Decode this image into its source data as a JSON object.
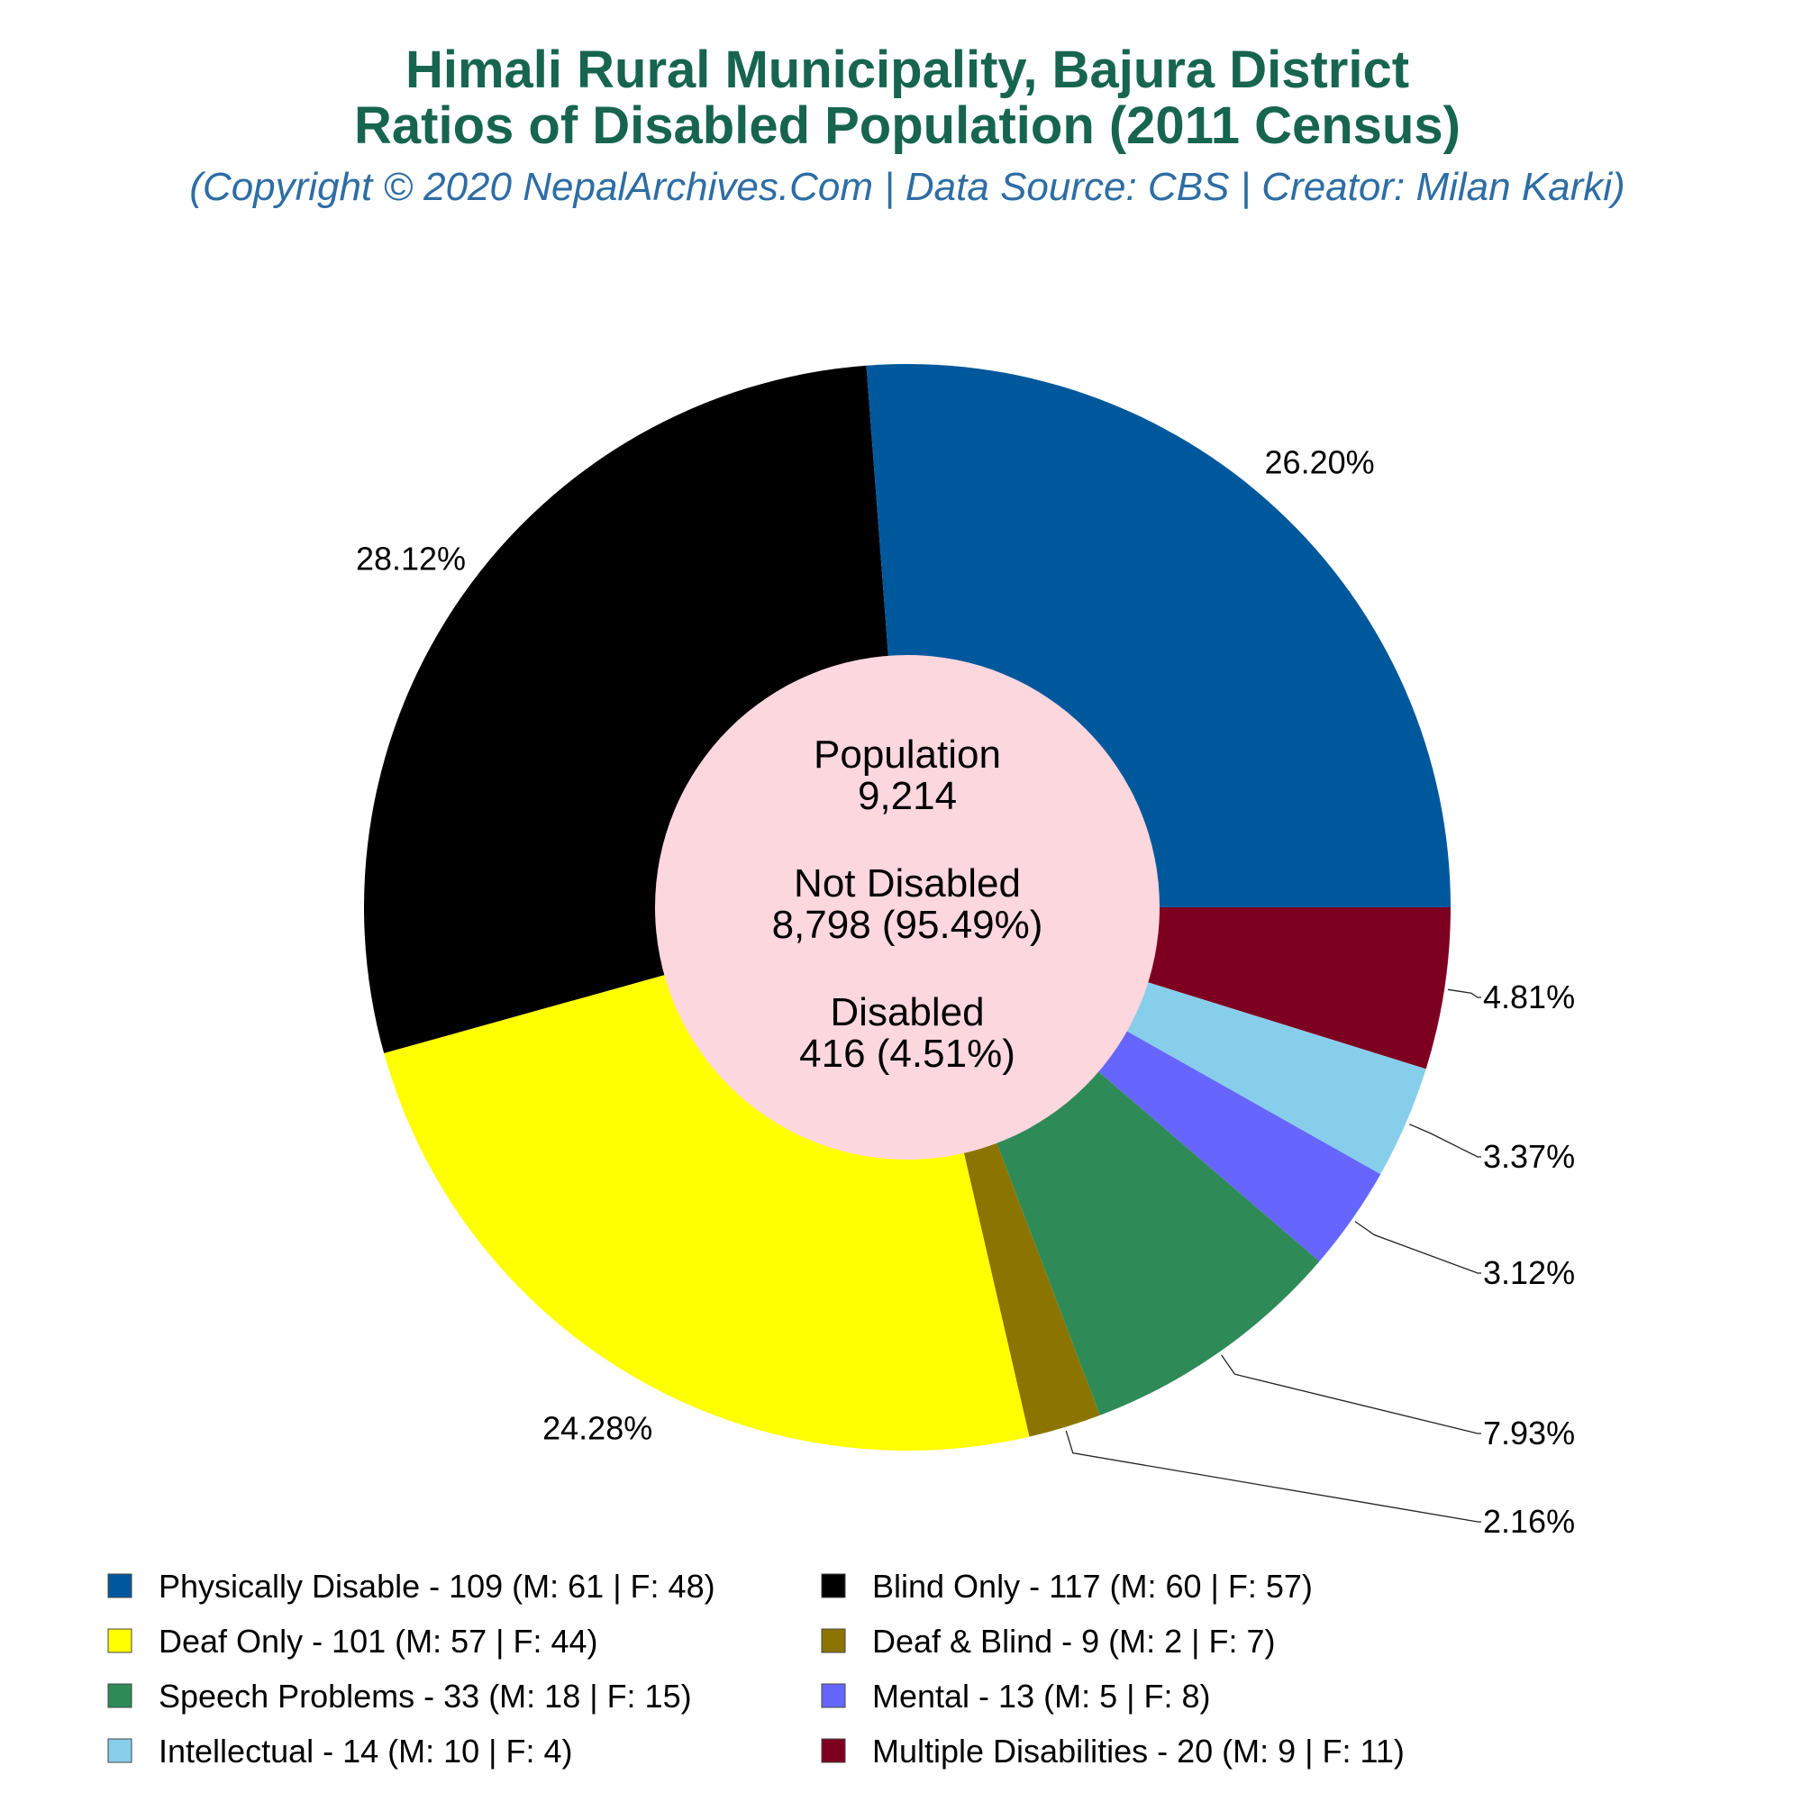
{
  "title_line1": "Himali Rural Municipality, Bajura District",
  "title_line2": "Ratios of Disabled Population (2011 Census)",
  "subtitle": "(Copyright © 2020 NepalArchives.Com | Data Source: CBS | Creator: Milan Karki)",
  "center": {
    "population_label": "Population",
    "population_value": "9,214",
    "not_disabled_label": "Not Disabled",
    "not_disabled_value": "8,798 (95.49%)",
    "disabled_label": "Disabled",
    "disabled_value": "416 (4.51%)",
    "color": "#fdd7de"
  },
  "chart_data": {
    "type": "pie",
    "donut": true,
    "start": "3 o'clock, clockwise",
    "slices": [
      {
        "legend": "Multiple Disabilities - 20 (M: 9 | F: 11)",
        "value": 20,
        "pct": "4.81%",
        "color": "#7e0021"
      },
      {
        "legend": "Intellectual - 14 (M: 10 | F: 4)",
        "value": 14,
        "pct": "3.37%",
        "color": "#87ceeb"
      },
      {
        "legend": "Mental - 13 (M: 5 | F: 8)",
        "value": 13,
        "pct": "3.12%",
        "color": "#6666ff"
      },
      {
        "legend": "Speech Problems - 33 (M: 18 | F: 15)",
        "value": 33,
        "pct": "7.93%",
        "color": "#2e8b57"
      },
      {
        "legend": "Deaf & Blind - 9 (M: 2 | F: 7)",
        "value": 9,
        "pct": "2.16%",
        "color": "#8b7500"
      },
      {
        "legend": "Deaf Only - 101 (M: 57 | F: 44)",
        "value": 101,
        "pct": "24.28%",
        "color": "#ffff00"
      },
      {
        "legend": "Blind Only - 117 (M: 60 | F: 57)",
        "value": 117,
        "pct": "28.12%",
        "color": "#000000"
      },
      {
        "legend": "Physically Disable - 109 (M: 61 | F: 48)",
        "value": 109,
        "pct": "26.20%",
        "color": "#00589c"
      }
    ],
    "legend_order": [
      7,
      6,
      5,
      4,
      3,
      2,
      1,
      0
    ]
  }
}
